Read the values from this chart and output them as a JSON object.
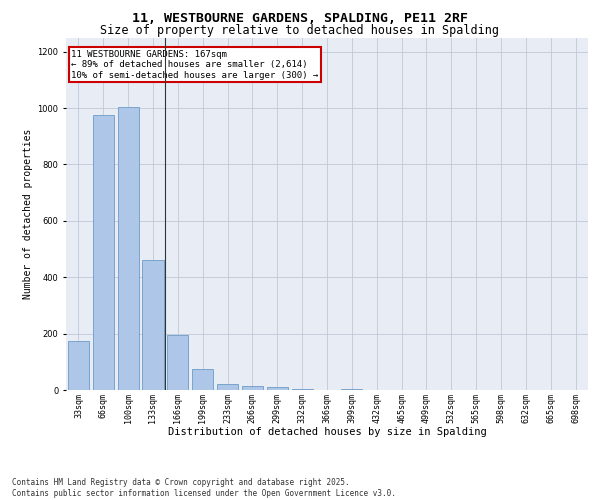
{
  "title1": "11, WESTBOURNE GARDENS, SPALDING, PE11 2RF",
  "title2": "Size of property relative to detached houses in Spalding",
  "xlabel": "Distribution of detached houses by size in Spalding",
  "ylabel": "Number of detached properties",
  "categories": [
    "33sqm",
    "66sqm",
    "100sqm",
    "133sqm",
    "166sqm",
    "199sqm",
    "233sqm",
    "266sqm",
    "299sqm",
    "332sqm",
    "366sqm",
    "399sqm",
    "432sqm",
    "465sqm",
    "499sqm",
    "532sqm",
    "565sqm",
    "598sqm",
    "632sqm",
    "665sqm",
    "698sqm"
  ],
  "values": [
    175,
    975,
    1005,
    460,
    195,
    75,
    20,
    15,
    10,
    5,
    0,
    5,
    0,
    0,
    0,
    0,
    0,
    0,
    0,
    0,
    0
  ],
  "bar_color": "#aec6e8",
  "bar_edge_color": "#5a8fc0",
  "vline_x_index": 4,
  "annotation_text": "11 WESTBOURNE GARDENS: 167sqm\n← 89% of detached houses are smaller (2,614)\n10% of semi-detached houses are larger (300) →",
  "annotation_box_color": "#ffffff",
  "annotation_box_edge": "#cc0000",
  "ylim": [
    0,
    1250
  ],
  "yticks": [
    0,
    200,
    400,
    600,
    800,
    1000,
    1200
  ],
  "grid_color": "#c0c8d8",
  "bg_color": "#e8edf5",
  "footnote": "Contains HM Land Registry data © Crown copyright and database right 2025.\nContains public sector information licensed under the Open Government Licence v3.0.",
  "title1_fontsize": 9.5,
  "title2_fontsize": 8.5,
  "xlabel_fontsize": 7.5,
  "ylabel_fontsize": 7,
  "tick_fontsize": 6,
  "annot_fontsize": 6.5,
  "footnote_fontsize": 5.5
}
